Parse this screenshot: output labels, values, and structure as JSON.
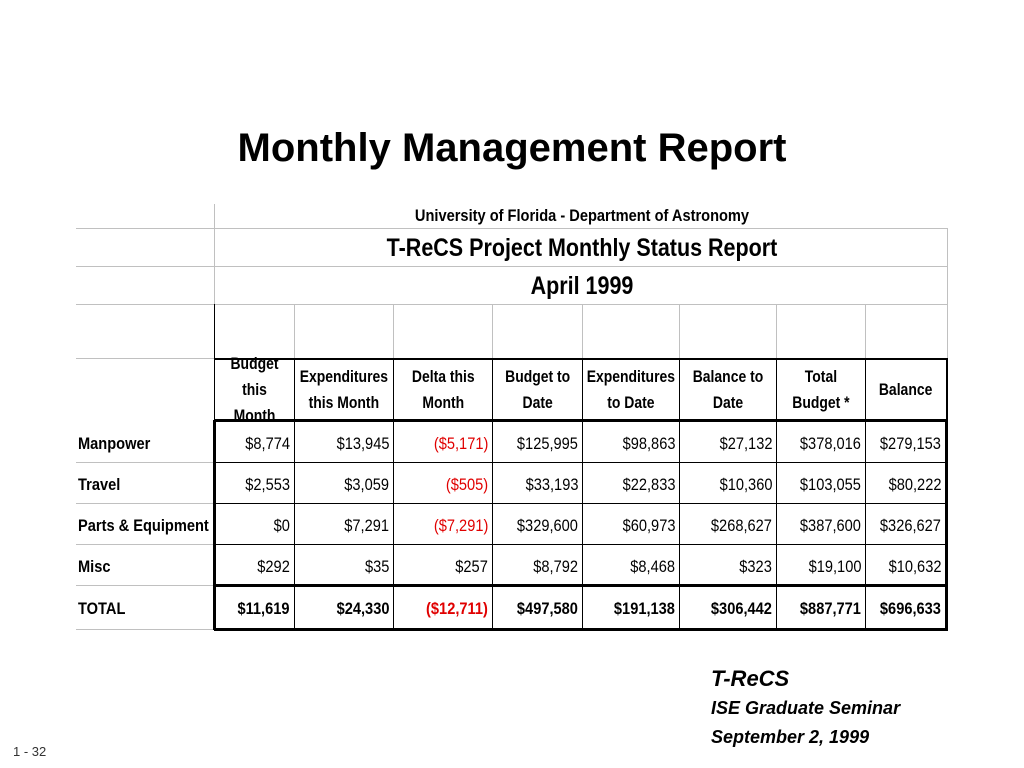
{
  "slide": {
    "title": "Monthly Management Report",
    "page_number": "1 - 32"
  },
  "report": {
    "org": "University of Florida - Department of Astronomy",
    "title": "T-ReCS Project Monthly Status Report",
    "period": "April 1999",
    "columns": [
      "Budget\nthis Month",
      "Expenditures\nthis Month",
      "Delta this\nMonth",
      "Budget to\nDate",
      "Expenditures\nto Date",
      "Balance to\nDate",
      "Total\nBudget *",
      "Balance"
    ],
    "rows": [
      {
        "label": "Manpower",
        "cells": [
          "$8,774",
          "$13,945",
          "($5,171)",
          "$125,995",
          "$98,863",
          "$27,132",
          "$378,016",
          "$279,153"
        ]
      },
      {
        "label": "Travel",
        "cells": [
          "$2,553",
          "$3,059",
          "($505)",
          "$33,193",
          "$22,833",
          "$10,360",
          "$103,055",
          "$80,222"
        ]
      },
      {
        "label": "Parts & Equipment",
        "cells": [
          "$0",
          "$7,291",
          "($7,291)",
          "$329,600",
          "$60,973",
          "$268,627",
          "$387,600",
          "$326,627"
        ]
      },
      {
        "label": "Misc",
        "cells": [
          "$292",
          "$35",
          "$257",
          "$8,792",
          "$8,468",
          "$323",
          "$19,100",
          "$10,632"
        ]
      },
      {
        "label": "TOTAL",
        "cells": [
          "$11,619",
          "$24,330",
          "($12,711)",
          "$497,580",
          "$191,138",
          "$306,442",
          "$887,771",
          "$696,633"
        ]
      }
    ],
    "negative_color": "#e00000"
  },
  "footer": {
    "line1": "T-ReCS",
    "line2": "ISE Graduate Seminar",
    "line3": "September 2, 1999"
  }
}
